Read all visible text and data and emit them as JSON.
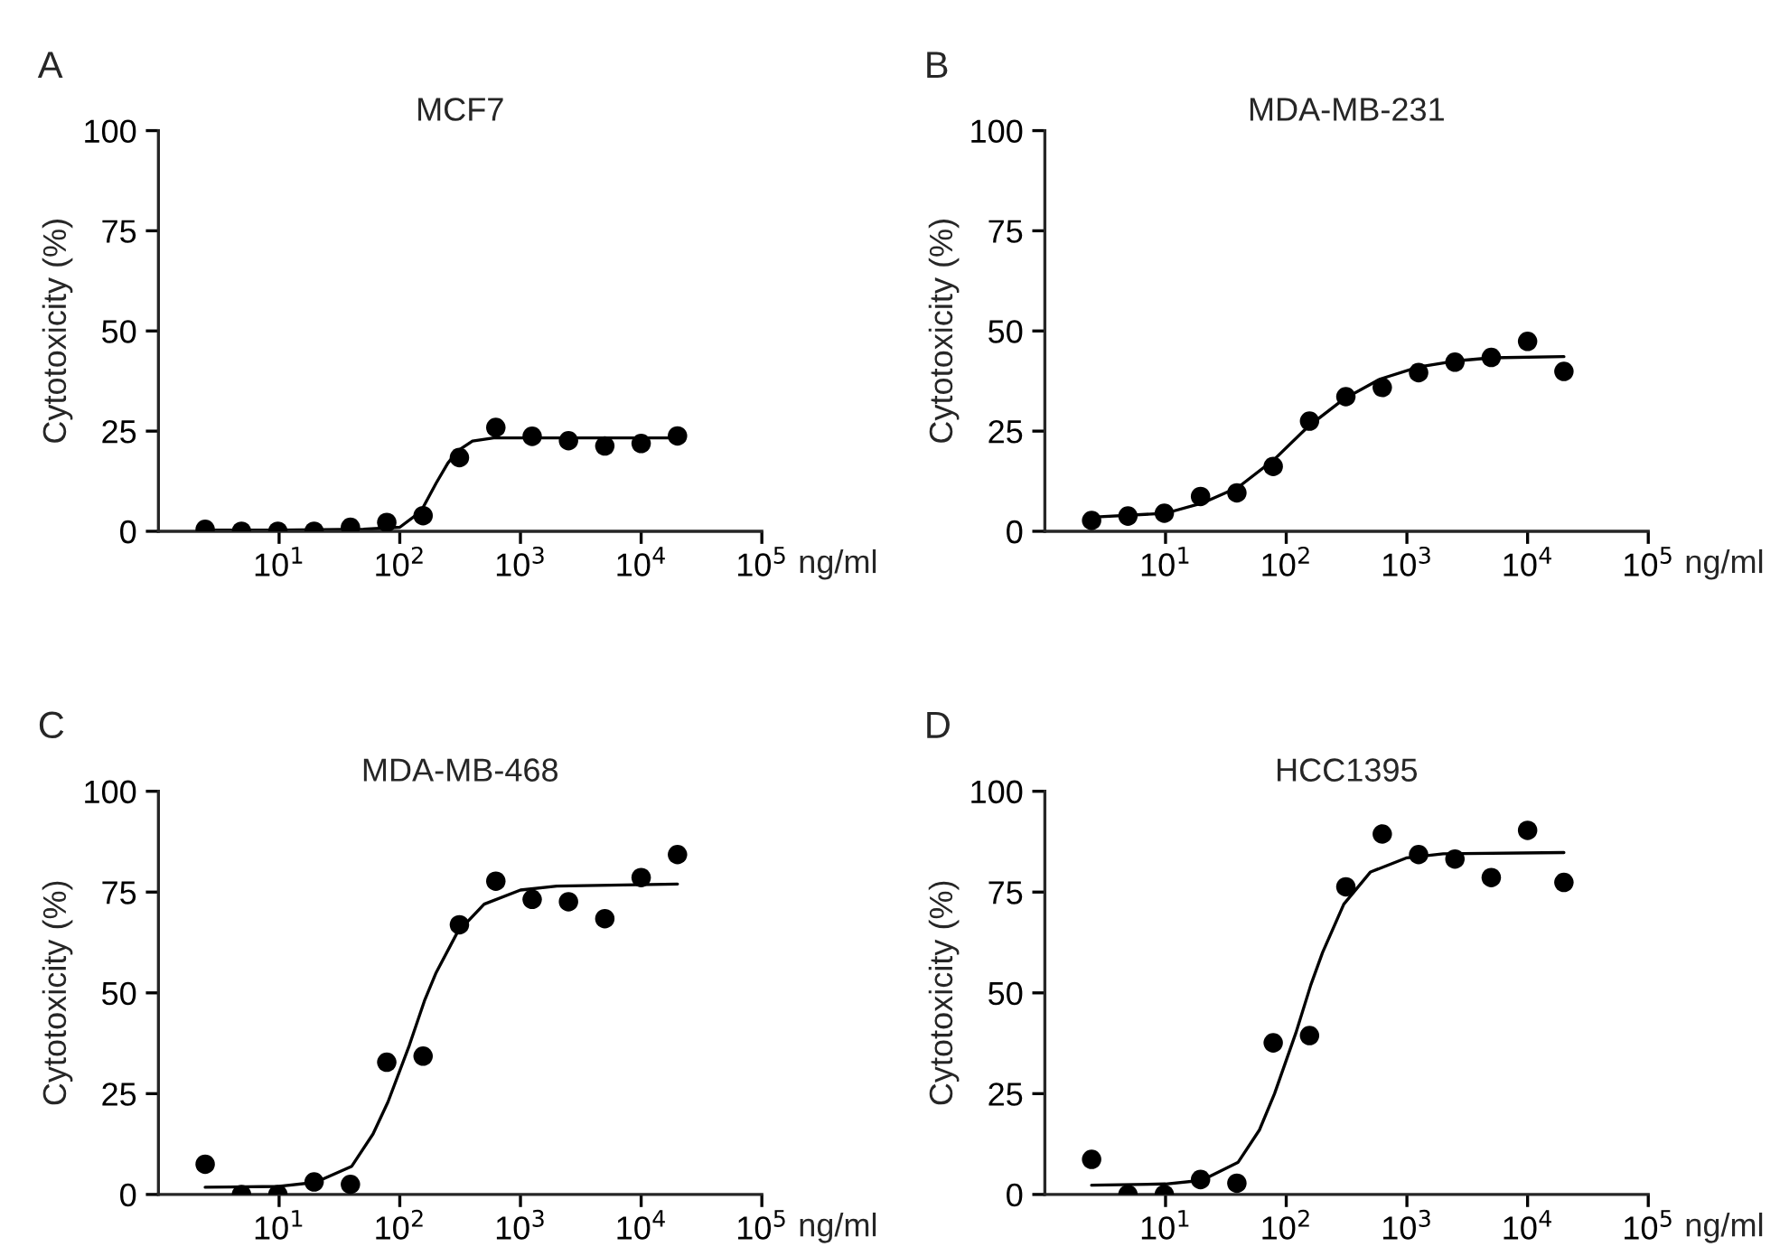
{
  "chart_data": [
    {
      "type": "scatter",
      "title": "MCF7",
      "xlabel": "ng/ml",
      "ylabel": "Cytotoxicity (%)",
      "annotations": [
        "A"
      ],
      "log": "x",
      "line_style": "solid",
      "grid": false,
      "legend": false,
      "xlim": [
        1,
        100000
      ],
      "xticks": [
        {
          "value": 10,
          "label": "10$^{1}$"
        },
        {
          "value": 100,
          "label": "10$^{2}$"
        },
        {
          "value": 1000,
          "label": "10$^{3}$"
        },
        {
          "value": 10000,
          "label": "10$^{4}$"
        },
        {
          "value": 100000,
          "label": "10$^{5}$"
        }
      ],
      "ylim": [
        0,
        100
      ],
      "yticks": [
        0,
        25,
        50,
        75,
        100
      ],
      "series": [
        {
          "marker": "circle",
          "color": "#000000",
          "x": [
            2.44,
            4.88,
            9.77,
            19.5,
            39,
            78,
            156,
            312,
            625,
            1250,
            2500,
            5000,
            10000,
            20000
          ],
          "values": [
            0.5,
            0,
            0,
            0,
            1,
            2.2,
            3.9,
            18.4,
            25.9,
            23.7,
            22.6,
            21.3,
            21.9,
            23.8
          ]
        },
        {
          "type": "line",
          "marker": "none",
          "color": "#000000",
          "x": [
            2.44,
            10,
            50,
            100,
            150,
            200,
            250,
            300,
            400,
            600,
            1000,
            20000
          ],
          "values": [
            0.3,
            0.3,
            0.5,
            1,
            5,
            12,
            17,
            20,
            22.5,
            23.3,
            23.3,
            23.3
          ]
        }
      ]
    },
    {
      "type": "scatter",
      "title": "MDA-MB-231",
      "xlabel": "ng/ml",
      "ylabel": "Cytotoxicity (%)",
      "annotations": [
        "B"
      ],
      "log": "x",
      "line_style": "solid",
      "grid": false,
      "legend": false,
      "xlim": [
        1,
        100000
      ],
      "xticks": [
        {
          "value": 10,
          "label": "10$^{1}$"
        },
        {
          "value": 100,
          "label": "10$^{2}$"
        },
        {
          "value": 1000,
          "label": "10$^{3}$"
        },
        {
          "value": 10000,
          "label": "10$^{4}$"
        },
        {
          "value": 100000,
          "label": "10$^{5}$"
        }
      ],
      "ylim": [
        0,
        100
      ],
      "yticks": [
        0,
        25,
        50,
        75,
        100
      ],
      "series": [
        {
          "marker": "circle",
          "color": "#000000",
          "x": [
            2.44,
            4.88,
            9.77,
            19.5,
            39,
            78,
            156,
            312,
            625,
            1250,
            2500,
            5000,
            10000,
            20000
          ],
          "values": [
            2.7,
            3.8,
            4.5,
            8.7,
            9.6,
            16.2,
            27.5,
            33.6,
            35.9,
            39.6,
            42.2,
            43.4,
            47.4,
            39.9
          ]
        },
        {
          "type": "line",
          "marker": "none",
          "color": "#000000",
          "x": [
            2.44,
            10,
            20,
            40,
            80,
            150,
            300,
            600,
            1250,
            2500,
            5000,
            20000
          ],
          "values": [
            3.5,
            4.5,
            7,
            11,
            18,
            26,
            33,
            38,
            41,
            42.5,
            43.3,
            43.6
          ]
        }
      ]
    },
    {
      "type": "scatter",
      "title": "MDA-MB-468",
      "xlabel": "ng/ml",
      "ylabel": "Cytotoxicity (%)",
      "annotations": [
        "C"
      ],
      "log": "x",
      "line_style": "solid",
      "grid": false,
      "legend": false,
      "xlim": [
        1,
        100000
      ],
      "xticks": [
        {
          "value": 10,
          "label": "10$^{1}$"
        },
        {
          "value": 100,
          "label": "10$^{2}$"
        },
        {
          "value": 1000,
          "label": "10$^{3}$"
        },
        {
          "value": 10000,
          "label": "10$^{4}$"
        },
        {
          "value": 100000,
          "label": "10$^{5}$"
        }
      ],
      "ylim": [
        0,
        100
      ],
      "yticks": [
        0,
        25,
        50,
        75,
        100
      ],
      "series": [
        {
          "marker": "circle",
          "color": "#000000",
          "x": [
            2.44,
            4.88,
            9.77,
            19.5,
            39,
            78,
            156,
            312,
            625,
            1250,
            2500,
            5000,
            10000,
            20000
          ],
          "values": [
            7.5,
            0,
            0,
            3.1,
            2.5,
            32.8,
            34.3,
            66.9,
            77.7,
            73.2,
            72.6,
            68.4,
            78.6,
            84.3
          ]
        },
        {
          "type": "line",
          "marker": "none",
          "color": "#000000",
          "x": [
            2.44,
            10,
            20,
            40,
            60,
            80,
            120,
            160,
            200,
            300,
            500,
            1000,
            2000,
            20000
          ],
          "values": [
            1.8,
            2,
            3,
            7,
            15,
            23,
            37,
            48,
            55,
            65,
            72,
            75.5,
            76.5,
            77
          ]
        }
      ]
    },
    {
      "type": "scatter",
      "title": "HCC1395",
      "xlabel": "ng/ml",
      "ylabel": "Cytotoxicity (%)",
      "annotations": [
        "D"
      ],
      "log": "x",
      "line_style": "solid",
      "grid": false,
      "legend": false,
      "xlim": [
        1,
        100000
      ],
      "xticks": [
        {
          "value": 10,
          "label": "10$^{1}$"
        },
        {
          "value": 100,
          "label": "10$^{2}$"
        },
        {
          "value": 1000,
          "label": "10$^{3}$"
        },
        {
          "value": 10000,
          "label": "10$^{4}$"
        },
        {
          "value": 100000,
          "label": "10$^{5}$"
        }
      ],
      "ylim": [
        0,
        100
      ],
      "yticks": [
        0,
        25,
        50,
        75,
        100
      ],
      "series": [
        {
          "marker": "circle",
          "color": "#000000",
          "x": [
            2.44,
            4.88,
            9.77,
            19.5,
            39,
            78,
            156,
            312,
            625,
            1250,
            2500,
            5000,
            10000,
            20000
          ],
          "values": [
            8.7,
            0,
            0,
            3.7,
            2.8,
            37.6,
            39.4,
            76.3,
            89.4,
            84.3,
            83.2,
            78.6,
            90.3,
            77.4
          ]
        },
        {
          "type": "line",
          "marker": "none",
          "color": "#000000",
          "x": [
            2.44,
            10,
            20,
            40,
            60,
            80,
            120,
            160,
            200,
            300,
            500,
            1000,
            2000,
            20000
          ],
          "values": [
            2.3,
            2.6,
            3.5,
            8,
            16,
            25,
            40,
            52,
            60,
            72,
            80,
            83.5,
            84.5,
            84.8
          ]
        }
      ]
    }
  ]
}
